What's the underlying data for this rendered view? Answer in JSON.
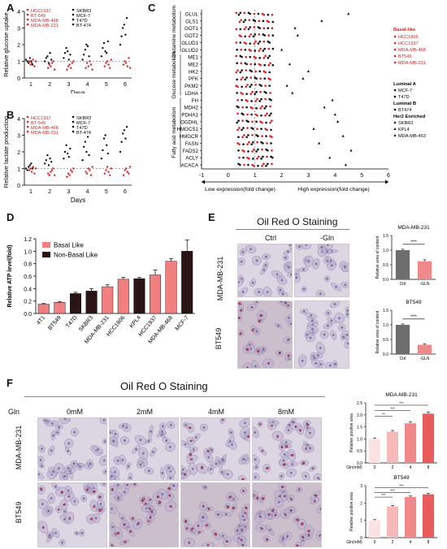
{
  "colors": {
    "red": "#e02020",
    "black": "#111111",
    "barBasal": "#f08080",
    "barNon": "#2a1414",
    "greyBar": "#6e6e6e",
    "pinkBar": "#f08a8a"
  },
  "panel_labels": {
    "a": "A",
    "b": "B",
    "c": "C",
    "d": "D",
    "e": "E",
    "f": "F"
  },
  "cell_lines": {
    "red": [
      "HCC1937",
      "BT-549",
      "MDA-MB-468",
      "MDA-MB-231"
    ],
    "black": [
      "SKBR3",
      "MCF-7",
      "T47D",
      "BT-474"
    ]
  },
  "chart_data": [
    {
      "type": "scatter",
      "id": "A",
      "ylabel": "Relative glucose uptake",
      "xlabel": "Days",
      "categories": [
        "1",
        "2",
        "3",
        "4",
        "5",
        "6"
      ],
      "yticks": [
        "0",
        "1",
        "2",
        "3",
        "4"
      ],
      "ylim": [
        0,
        4
      ],
      "ref_line": 1,
      "series": [
        {
          "name": "Basal-like",
          "color": "red",
          "values": [
            [
              1.0,
              0.8,
              0.9,
              1.1,
              0.7,
              1.0
            ],
            [
              0.6,
              0.8,
              0.7,
              0.9,
              1.0,
              0.5
            ],
            [
              0.5,
              0.7,
              0.8,
              0.6,
              0.9,
              1.0
            ],
            [
              0.6,
              0.9,
              0.7,
              1.0,
              0.8,
              0.5
            ],
            [
              0.7,
              0.9,
              1.0,
              0.8,
              0.6,
              1.1
            ],
            [
              0.8,
              1.0,
              0.9,
              0.7,
              1.2,
              0.6
            ]
          ]
        },
        {
          "name": "Non-basal",
          "color": "black",
          "values": [
            [
              1.1,
              1.0,
              0.9,
              1.2,
              1.0,
              0.8
            ],
            [
              1.0,
              1.2,
              1.3,
              0.9,
              1.5,
              1.1
            ],
            [
              1.2,
              1.5,
              1.8,
              1.6,
              1.1,
              1.4
            ],
            [
              1.1,
              1.4,
              1.7,
              2.0,
              1.9,
              1.3
            ],
            [
              1.3,
              1.8,
              2.1,
              1.6,
              1.5,
              2.2
            ],
            [
              2.0,
              2.5,
              3.0,
              3.2,
              2.6,
              3.6
            ]
          ]
        }
      ]
    },
    {
      "type": "scatter",
      "id": "B",
      "ylabel": "Relative lactate production",
      "xlabel": "Days",
      "categories": [
        "1",
        "2",
        "3",
        "4",
        "5",
        "6"
      ],
      "yticks": [
        "0",
        "1",
        "2",
        "3",
        "4"
      ],
      "ylim": [
        0,
        4
      ],
      "ref_line": 1,
      "series": [
        {
          "name": "Basal-like",
          "color": "red",
          "values": [
            [
              0.9,
              1.0,
              0.8,
              1.1,
              0.7,
              1.0
            ],
            [
              0.7,
              0.6,
              0.8,
              0.9,
              1.0,
              0.6
            ],
            [
              0.5,
              0.7,
              0.6,
              0.9,
              0.8,
              1.0
            ],
            [
              0.8,
              0.7,
              1.0,
              0.9,
              0.6,
              1.1
            ],
            [
              0.7,
              0.9,
              1.1,
              0.8,
              0.6,
              1.0
            ],
            [
              0.6,
              0.9,
              1.0,
              0.8,
              0.7,
              1.1
            ]
          ]
        },
        {
          "name": "Non-basal",
          "color": "black",
          "values": [
            [
              1.0,
              0.9,
              1.1,
              1.2,
              1.3,
              1.0
            ],
            [
              1.3,
              1.5,
              1.8,
              1.2,
              1.6,
              1.4
            ],
            [
              1.6,
              2.0,
              2.4,
              1.9,
              1.7,
              2.2
            ],
            [
              1.5,
              2.3,
              2.6,
              2.0,
              2.9,
              1.8
            ],
            [
              1.6,
              2.1,
              2.8,
              3.0,
              2.4,
              1.9
            ],
            [
              2.0,
              2.6,
              3.1,
              3.3,
              2.8,
              3.5
            ]
          ]
        }
      ]
    },
    {
      "type": "scatter",
      "id": "C",
      "xlabel_low": "Low expression(fold change)",
      "xlabel_high": "High expression(fold change)",
      "xticks": [
        "-1",
        "0",
        "1",
        "2",
        "3",
        "4",
        "5",
        "6"
      ],
      "xlim": [
        -1,
        6
      ],
      "genes": [
        "GLUL",
        "GLS1",
        "GOT1",
        "GOT2",
        "GLUD1",
        "GLUD2",
        "ME1",
        "ME2",
        "HK2",
        "PFK",
        "PKM2",
        "LDHA",
        "FH",
        "MDH2",
        "PDHA1",
        "OGDHL",
        "HMGCS1",
        "HMGCR",
        "FASN",
        "FADS2",
        "ACLY",
        "ACACA"
      ],
      "groups": [
        "Glutamine metabolism",
        "Glucose metabolism",
        "Fatty acid metabolism"
      ],
      "legend": {
        "basal_title": "Basal-like",
        "basal": [
          "HCC1806",
          "HCC1937",
          "MDA-MB-468",
          "BT549",
          "MDA-MB-231"
        ],
        "luma_title": "Luminal A",
        "luma": [
          "MCF-7",
          "T47D"
        ],
        "lumb_title": "Luminal B",
        "lumb": [
          "BT474"
        ],
        "her2_title": "Her2 Enriched",
        "her2": [
          "SKBR3",
          "KPL4",
          "MDA-MB-453"
        ]
      },
      "outliers": [
        {
          "gene": "GLUL",
          "x": 4.5
        },
        {
          "gene": "GLS1",
          "x": 3.5
        },
        {
          "gene": "GOT1",
          "x": 2.5
        },
        {
          "gene": "GOT2",
          "x": 2.6
        },
        {
          "gene": "GLUD2",
          "x": 2.0
        },
        {
          "gene": "ME2",
          "x": 2.3
        },
        {
          "gene": "HK2",
          "x": 3.0
        },
        {
          "gene": "PFK",
          "x": 2.8
        },
        {
          "gene": "PKM2",
          "x": 2.2
        },
        {
          "gene": "LDHA",
          "x": 2.4
        },
        {
          "gene": "MDH2",
          "x": 3.6
        },
        {
          "gene": "PDHA1",
          "x": 4.0
        },
        {
          "gene": "OGDHL",
          "x": 4.1
        },
        {
          "gene": "HMGCS1",
          "x": 3.2
        },
        {
          "gene": "HMGCR",
          "x": 4.3
        },
        {
          "gene": "FASN",
          "x": 3.4
        },
        {
          "gene": "FADS2",
          "x": 4.6
        },
        {
          "gene": "ACLY",
          "x": 3.8
        },
        {
          "gene": "ACACA",
          "x": 4.4
        },
        {
          "gene": "FH",
          "x": 3.9
        }
      ]
    },
    {
      "type": "bar",
      "id": "D",
      "ylabel": "Relative ATP level(fold)",
      "categories": [
        "4T1",
        "BT549",
        "T47D",
        "SKBR3",
        "MDA-MB-231",
        "HCC1806",
        "KPL4",
        "HCC1937",
        "MDA-MB-468",
        "MCF-7"
      ],
      "values": [
        0.15,
        0.18,
        0.32,
        0.36,
        0.43,
        0.55,
        0.56,
        0.62,
        0.84,
        1.0
      ],
      "errors": [
        0.01,
        0.01,
        0.02,
        0.04,
        0.03,
        0.03,
        0.02,
        0.08,
        0.04,
        0.18
      ],
      "group": [
        "basal",
        "basal",
        "non",
        "non",
        "basal",
        "basal",
        "non",
        "basal",
        "basal",
        "non"
      ],
      "yticks": [
        "0.0",
        "0.2",
        "0.4",
        "0.6",
        "0.8",
        "1.0",
        "1.2"
      ],
      "ylim": [
        0,
        1.2
      ],
      "legend": [
        "Basal Like",
        "Non-Basal  Like"
      ]
    },
    {
      "type": "bar",
      "id": "E1",
      "title": "MDA-MB-231",
      "ylabel": "Relative area of content",
      "categories": [
        "Ctrl",
        "-GLN"
      ],
      "values": [
        1.0,
        0.62
      ],
      "errors": [
        0.03,
        0.05
      ],
      "sig": "****",
      "yticks": [
        "0.0",
        "0.5",
        "1.0",
        "1.5"
      ],
      "ylim": [
        0,
        1.5
      ]
    },
    {
      "type": "bar",
      "id": "E2",
      "title": "BT549",
      "ylabel": "Relative area of content",
      "categories": [
        "Ctrl",
        "-GLN"
      ],
      "values": [
        1.0,
        0.32
      ],
      "errors": [
        0.03,
        0.03
      ],
      "sig": "****",
      "yticks": [
        "0.0",
        "0.5",
        "1.0",
        "1.5"
      ],
      "ylim": [
        0,
        1.5
      ]
    },
    {
      "type": "bar",
      "id": "F1",
      "title": "MDA-MB-231",
      "ylabel": "Relative positive area",
      "xlabel": "Gln(mM)",
      "categories": [
        "0",
        "2",
        "4",
        "8"
      ],
      "values": [
        1.0,
        1.3,
        1.65,
        2.05
      ],
      "errors": [
        0.04,
        0.05,
        0.05,
        0.06
      ],
      "sig": [
        "**",
        "***",
        "***"
      ],
      "yticks": [
        "0.0",
        "0.5",
        "1.0",
        "1.5",
        "2.0",
        "2.5"
      ],
      "ylim": [
        0,
        2.5
      ]
    },
    {
      "type": "bar",
      "id": "F2",
      "title": "BT549",
      "ylabel": "Relative positive area",
      "xlabel": "Gln(mM)",
      "categories": [
        "0",
        "2",
        "4",
        "8"
      ],
      "values": [
        1.0,
        1.8,
        2.35,
        2.5
      ],
      "errors": [
        0.04,
        0.06,
        0.05,
        0.05
      ],
      "sig": [
        "***",
        "***",
        "***"
      ],
      "yticks": [
        "0",
        "1",
        "2",
        "3"
      ],
      "ylim": [
        0,
        3
      ]
    }
  ],
  "panel_e": {
    "title": "Oil Red O Staining",
    "cols": [
      "Ctrl",
      "-Gln"
    ],
    "rows": [
      "MDA-MB-231",
      "BT549"
    ]
  },
  "panel_f": {
    "title": "Oil Red O Staining",
    "gln_label": "Gln",
    "cols": [
      "0mM",
      "2mM",
      "4mM",
      "8mM"
    ],
    "rows": [
      "MDA-MB-231",
      "BT549"
    ]
  }
}
